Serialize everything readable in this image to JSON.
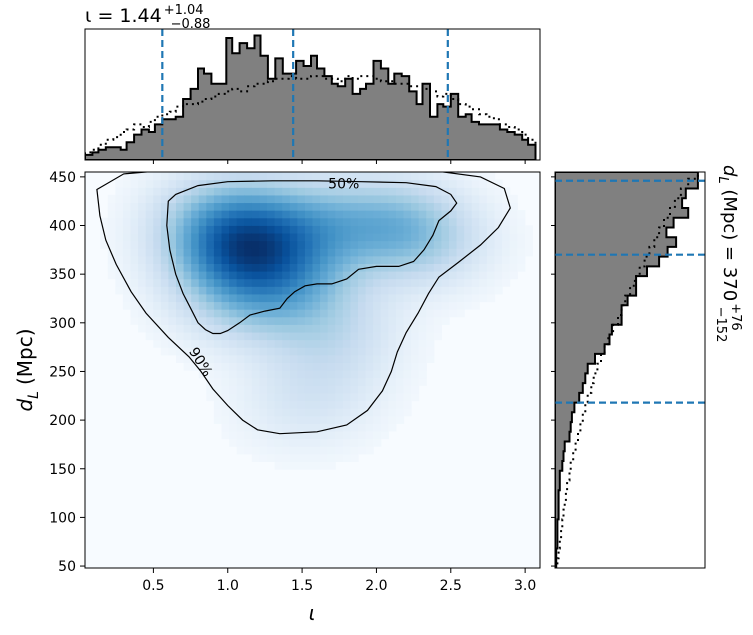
{
  "chart_data": [
    {
      "type": "histogram",
      "panel": "top-marginal",
      "title_main": "ι = 1.44",
      "title_sup": "+1.04",
      "title_sub": "−0.88",
      "xlim": [
        0.04,
        3.1
      ],
      "quantile_lines": [
        0.56,
        1.44,
        2.48
      ],
      "bins": [
        0.04,
        0.09,
        0.13,
        0.18,
        0.23,
        0.28,
        0.32,
        0.37,
        0.42,
        0.47,
        0.51,
        0.56,
        0.61,
        0.65,
        0.7,
        0.75,
        0.8,
        0.84,
        0.89,
        0.94,
        0.99,
        1.03,
        1.08,
        1.13,
        1.18,
        1.22,
        1.27,
        1.32,
        1.37,
        1.41,
        1.46,
        1.51,
        1.56,
        1.6,
        1.65,
        1.7,
        1.74,
        1.79,
        1.84,
        1.89,
        1.93,
        1.98,
        2.03,
        2.08,
        2.12,
        2.17,
        2.22,
        2.27,
        2.31,
        2.36,
        2.41,
        2.45,
        2.5,
        2.55,
        2.6,
        2.64,
        2.69,
        2.74,
        2.79,
        2.83,
        2.88,
        2.93,
        2.98,
        3.02,
        3.07
      ],
      "counts": [
        2,
        3,
        4,
        5,
        5,
        4,
        7,
        10,
        12,
        11,
        14,
        16,
        16,
        17,
        24,
        28,
        36,
        34,
        30,
        30,
        48,
        42,
        46,
        44,
        49,
        41,
        32,
        40,
        34,
        34,
        39,
        37,
        41,
        36,
        33,
        30,
        29,
        32,
        26,
        28,
        30,
        39,
        36,
        30,
        34,
        33,
        27,
        22,
        30,
        17,
        22,
        21,
        26,
        17,
        18,
        15,
        14,
        14,
        14,
        12,
        11,
        10,
        8,
        6
      ],
      "prior_counts": [
        3,
        4,
        6,
        8,
        9,
        11,
        12,
        14,
        13,
        15,
        17,
        18,
        19,
        21,
        22,
        22,
        23,
        24,
        25,
        26,
        27,
        28,
        27,
        29,
        30,
        30,
        31,
        32,
        32,
        33,
        32,
        32,
        33,
        33,
        32,
        32,
        31,
        33,
        32,
        33,
        33,
        32,
        31,
        31,
        30,
        30,
        29,
        29,
        28,
        27,
        25,
        26,
        24,
        22,
        21,
        20,
        18,
        17,
        16,
        14,
        13,
        12,
        10,
        8
      ]
    },
    {
      "type": "heatmap",
      "panel": "joint",
      "xlabel": "ι",
      "ylabel": "d",
      "ylabel_sub": "L",
      "ylabel_unit": "(Mpc)",
      "xlim": [
        0.04,
        3.1
      ],
      "ylim": [
        48,
        455
      ],
      "xticks": [
        0.5,
        1.0,
        1.5,
        2.0,
        2.5,
        3.0
      ],
      "xtick_labels": [
        "0.5",
        "1.0",
        "1.5",
        "2.0",
        "2.5",
        "3.0"
      ],
      "yticks": [
        50,
        100,
        150,
        200,
        250,
        300,
        350,
        400,
        450
      ],
      "ytick_labels": [
        "50",
        "100",
        "150",
        "200",
        "250",
        "300",
        "350",
        "400",
        "450"
      ],
      "colormap": "Blues",
      "density_peaks": [
        {
          "x": 1.1,
          "y": 372,
          "w": 1.0
        },
        {
          "x": 1.0,
          "y": 410,
          "w": 0.55
        },
        {
          "x": 1.55,
          "y": 400,
          "w": 0.5
        },
        {
          "x": 2.1,
          "y": 405,
          "w": 0.45
        },
        {
          "x": 1.45,
          "y": 340,
          "w": 0.4
        },
        {
          "x": 1.1,
          "y": 320,
          "w": 0.3
        },
        {
          "x": 1.7,
          "y": 290,
          "w": 0.25
        },
        {
          "x": 2.3,
          "y": 380,
          "w": 0.3
        },
        {
          "x": 1.6,
          "y": 240,
          "w": 0.15
        },
        {
          "x": 1.5,
          "y": 205,
          "w": 0.1
        }
      ],
      "contours": [
        {
          "label": "50%",
          "label_x": 1.78,
          "label_y": 443,
          "points": [
            [
              0.6,
              425
            ],
            [
              0.65,
              432
            ],
            [
              0.8,
              441
            ],
            [
              1.0,
              445
            ],
            [
              1.3,
              446
            ],
            [
              1.6,
              446
            ],
            [
              1.9,
              445
            ],
            [
              2.2,
              444
            ],
            [
              2.4,
              440
            ],
            [
              2.5,
              432
            ],
            [
              2.54,
              423
            ],
            [
              2.5,
              415
            ],
            [
              2.42,
              405
            ],
            [
              2.38,
              390
            ],
            [
              2.32,
              375
            ],
            [
              2.25,
              363
            ],
            [
              2.15,
              358
            ],
            [
              2.0,
              358
            ],
            [
              1.88,
              355
            ],
            [
              1.8,
              345
            ],
            [
              1.7,
              340
            ],
            [
              1.6,
              340
            ],
            [
              1.52,
              338
            ],
            [
              1.45,
              332
            ],
            [
              1.4,
              325
            ],
            [
              1.35,
              315
            ],
            [
              1.25,
              312
            ],
            [
              1.15,
              308
            ],
            [
              1.08,
              300
            ],
            [
              1.0,
              292
            ],
            [
              0.95,
              289
            ],
            [
              0.9,
              289
            ],
            [
              0.85,
              293
            ],
            [
              0.8,
              300
            ],
            [
              0.75,
              315
            ],
            [
              0.7,
              330
            ],
            [
              0.65,
              350
            ],
            [
              0.61,
              375
            ],
            [
              0.59,
              400
            ],
            [
              0.6,
              425
            ]
          ]
        },
        {
          "label": "90%",
          "label_x": 0.82,
          "label_y": 260,
          "points": [
            [
              0.12,
              437
            ],
            [
              0.3,
              453
            ],
            [
              0.6,
              457
            ],
            [
              1.0,
              458
            ],
            [
              1.5,
              458
            ],
            [
              2.0,
              458
            ],
            [
              2.4,
              456
            ],
            [
              2.7,
              450
            ],
            [
              2.86,
              438
            ],
            [
              2.9,
              418
            ],
            [
              2.82,
              398
            ],
            [
              2.7,
              380
            ],
            [
              2.55,
              362
            ],
            [
              2.42,
              347
            ],
            [
              2.35,
              330
            ],
            [
              2.28,
              310
            ],
            [
              2.2,
              290
            ],
            [
              2.14,
              270
            ],
            [
              2.1,
              250
            ],
            [
              2.04,
              230
            ],
            [
              1.94,
              210
            ],
            [
              1.8,
              195
            ],
            [
              1.6,
              188
            ],
            [
              1.35,
              186
            ],
            [
              1.2,
              190
            ],
            [
              1.1,
              200
            ],
            [
              1.0,
              215
            ],
            [
              0.9,
              232
            ],
            [
              0.82,
              250
            ],
            [
              0.74,
              265
            ],
            [
              0.6,
              285
            ],
            [
              0.45,
              310
            ],
            [
              0.35,
              332
            ],
            [
              0.25,
              360
            ],
            [
              0.18,
              385
            ],
            [
              0.14,
              410
            ],
            [
              0.12,
              437
            ]
          ]
        }
      ]
    },
    {
      "type": "histogram",
      "orientation": "horizontal",
      "panel": "right-marginal",
      "title_main": "d",
      "title_sub_L": "L",
      "title_rest": " (Mpc) = 370",
      "title_sup": "+76",
      "title_sub": "−152",
      "ylim": [
        48,
        455
      ],
      "quantile_lines": [
        218,
        370,
        446
      ],
      "bins": [
        48,
        58,
        68,
        78,
        88,
        98,
        108,
        118,
        128,
        138,
        148,
        158,
        168,
        178,
        188,
        198,
        208,
        218,
        228,
        238,
        248,
        258,
        268,
        278,
        288,
        298,
        308,
        318,
        328,
        338,
        348,
        358,
        368,
        378,
        388,
        398,
        408,
        418,
        428,
        438,
        448,
        455
      ],
      "counts": [
        1,
        1,
        2,
        2,
        2,
        3,
        3,
        3,
        4,
        4,
        6,
        7,
        8,
        12,
        13,
        14,
        16,
        20,
        23,
        25,
        27,
        33,
        41,
        45,
        47,
        55,
        55,
        60,
        67,
        67,
        76,
        86,
        93,
        100,
        92,
        98,
        110,
        105,
        108,
        118,
        118
      ],
      "prior_counts": [
        2,
        3,
        4,
        5,
        6,
        7,
        8,
        9,
        10,
        12,
        13,
        15,
        17,
        19,
        21,
        23,
        25,
        27,
        30,
        32,
        35,
        38,
        41,
        44,
        48,
        52,
        55,
        58,
        62,
        66,
        70,
        74,
        78,
        82,
        86,
        90,
        95,
        99,
        104,
        110,
        118
      ]
    }
  ]
}
